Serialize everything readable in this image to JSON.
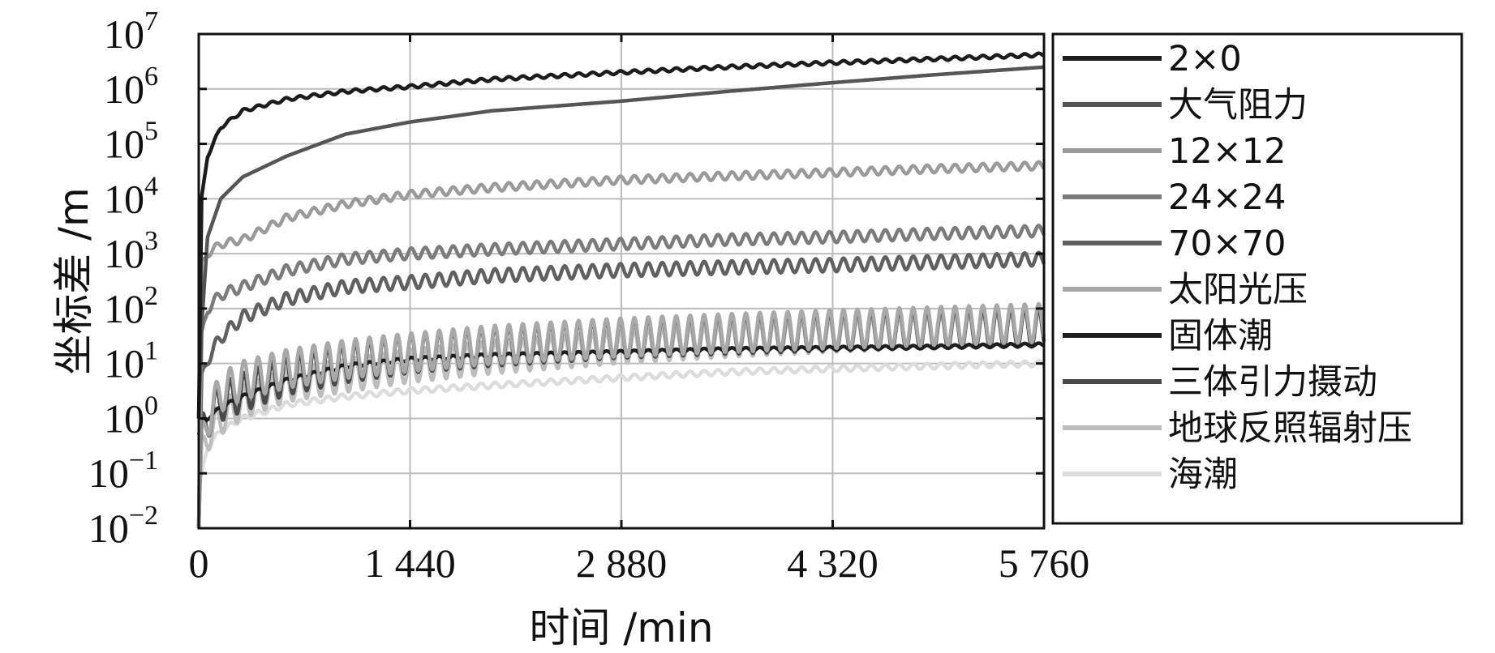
{
  "chart_data": {
    "type": "line",
    "title": "",
    "xlabel": "时间 /min",
    "ylabel": "坐标差 /m",
    "xlim": [
      0,
      5760
    ],
    "xscale": "linear",
    "yscale": "log",
    "ylim_log10": [
      -2,
      7
    ],
    "grid": true,
    "legend_position": "right",
    "x_ticks": [
      {
        "value": 0,
        "label": "0"
      },
      {
        "value": 1440,
        "label": "1 440"
      },
      {
        "value": 2880,
        "label": "2 880"
      },
      {
        "value": 4320,
        "label": "4 320"
      },
      {
        "value": 5760,
        "label": "5 760"
      }
    ],
    "y_ticks": [
      {
        "exp": -2,
        "base": "10",
        "sup": "−2"
      },
      {
        "exp": -1,
        "base": "10",
        "sup": "−1"
      },
      {
        "exp": 0,
        "base": "10",
        "sup": "0"
      },
      {
        "exp": 1,
        "base": "10",
        "sup": "1"
      },
      {
        "exp": 2,
        "base": "10",
        "sup": "2"
      },
      {
        "exp": 3,
        "base": "10",
        "sup": "3"
      },
      {
        "exp": 4,
        "base": "10",
        "sup": "4"
      },
      {
        "exp": 5,
        "base": "10",
        "sup": "5"
      },
      {
        "exp": 6,
        "base": "10",
        "sup": "6"
      },
      {
        "exp": 7,
        "base": "10",
        "sup": "7"
      }
    ],
    "series": [
      {
        "name": "2×0",
        "color": "#1c1c1c",
        "x": [
          0,
          20,
          60,
          150,
          300,
          600,
          1000,
          1440,
          2000,
          2880,
          3600,
          4320,
          5000,
          5760
        ],
        "y": [
          1.0,
          10000,
          60000,
          200000,
          400000,
          650000,
          900000,
          1100000,
          1500000,
          2000000,
          2500000,
          3000000,
          3500000,
          4200000
        ],
        "osc_amp_log": 0.03,
        "osc_period": 95
      },
      {
        "name": "大气阻力",
        "color": "#555555",
        "x": [
          0,
          20,
          60,
          150,
          300,
          600,
          1000,
          1440,
          2000,
          2880,
          3600,
          4320,
          5000,
          5760
        ],
        "y": [
          1.0,
          50,
          2000,
          10000,
          25000,
          60000,
          150000,
          250000,
          400000,
          600000,
          900000,
          1300000,
          1800000,
          2500000
        ],
        "osc_amp_log": 0.0,
        "osc_period": 95
      },
      {
        "name": "12×12",
        "color": "#9a9a9a",
        "x": [
          0,
          20,
          60,
          150,
          300,
          600,
          1000,
          1440,
          2000,
          2880,
          3600,
          4320,
          5000,
          5760
        ],
        "y": [
          0.01,
          600,
          1000,
          1500,
          1800,
          4500,
          8000,
          12000,
          16000,
          22000,
          26000,
          30000,
          35000,
          40000
        ],
        "osc_amp_log": 0.07,
        "osc_period": 95
      },
      {
        "name": "24×24",
        "color": "#7b7b7b",
        "x": [
          0,
          20,
          60,
          150,
          300,
          600,
          1000,
          1440,
          2000,
          2880,
          3600,
          4320,
          5000,
          5760
        ],
        "y": [
          0.01,
          30,
          100,
          180,
          250,
          500,
          800,
          1000,
          1200,
          1500,
          1800,
          2000,
          2300,
          2600
        ],
        "osc_amp_log": 0.1,
        "osc_period": 95
      },
      {
        "name": "70×70",
        "color": "#606060",
        "x": [
          0,
          20,
          60,
          150,
          300,
          600,
          1000,
          1440,
          2000,
          2880,
          3600,
          4320,
          5000,
          5760
        ],
        "y": [
          0.01,
          5,
          12,
          30,
          70,
          150,
          250,
          300,
          400,
          500,
          560,
          620,
          700,
          800
        ],
        "osc_amp_log": 0.12,
        "osc_period": 95
      },
      {
        "name": "太阳光压",
        "color": "#a8a8a8",
        "x": [
          0,
          20,
          60,
          150,
          300,
          600,
          1000,
          1440,
          2000,
          2880,
          3600,
          4320,
          5000,
          5760
        ],
        "y": [
          0.01,
          0.3,
          1,
          3,
          5,
          8,
          12,
          16,
          22,
          30,
          36,
          42,
          48,
          55
        ],
        "osc_amp_log": 0.35,
        "osc_period": 95
      },
      {
        "name": "固体潮",
        "color": "#1e1e1e",
        "x": [
          0,
          20,
          60,
          150,
          300,
          600,
          1000,
          1440,
          2000,
          2880,
          3600,
          4320,
          5000,
          5760
        ],
        "y": [
          0.5,
          0.7,
          1.0,
          1.6,
          2.5,
          5,
          9,
          12,
          14,
          16,
          18,
          19,
          20,
          22
        ],
        "osc_amp_log": 0.03,
        "osc_period": 95
      },
      {
        "name": "三体引力摄动",
        "color": "#4a4a4a",
        "x": [
          0,
          20,
          60,
          150,
          300,
          600,
          1000,
          1440,
          2000,
          2880,
          3600,
          4320,
          5000,
          5760
        ],
        "y": [
          0.01,
          0.5,
          1,
          2,
          3,
          6,
          10,
          15,
          20,
          28,
          33,
          38,
          42,
          45
        ],
        "osc_amp_log": 0.35,
        "osc_period": 95
      },
      {
        "name": "地球反照辐射压",
        "color": "#bdbdbd",
        "x": [
          0,
          20,
          60,
          150,
          300,
          600,
          1000,
          1440,
          2000,
          2880,
          3600,
          4320,
          5000,
          5760
        ],
        "y": [
          0.01,
          0.2,
          0.5,
          1,
          2,
          4,
          6,
          9,
          13,
          20,
          26,
          32,
          38,
          45
        ],
        "osc_amp_log": 0.3,
        "osc_period": 95
      },
      {
        "name": "海潮",
        "color": "#dcdcdc",
        "x": [
          0,
          20,
          60,
          150,
          300,
          600,
          1000,
          1440,
          2000,
          2880,
          3600,
          4320,
          5000,
          5760
        ],
        "y": [
          0.05,
          0.1,
          0.3,
          0.6,
          1,
          1.8,
          2.5,
          3.2,
          4,
          5.5,
          7,
          8,
          9,
          10
        ],
        "osc_amp_log": 0.05,
        "osc_period": 95
      }
    ]
  }
}
